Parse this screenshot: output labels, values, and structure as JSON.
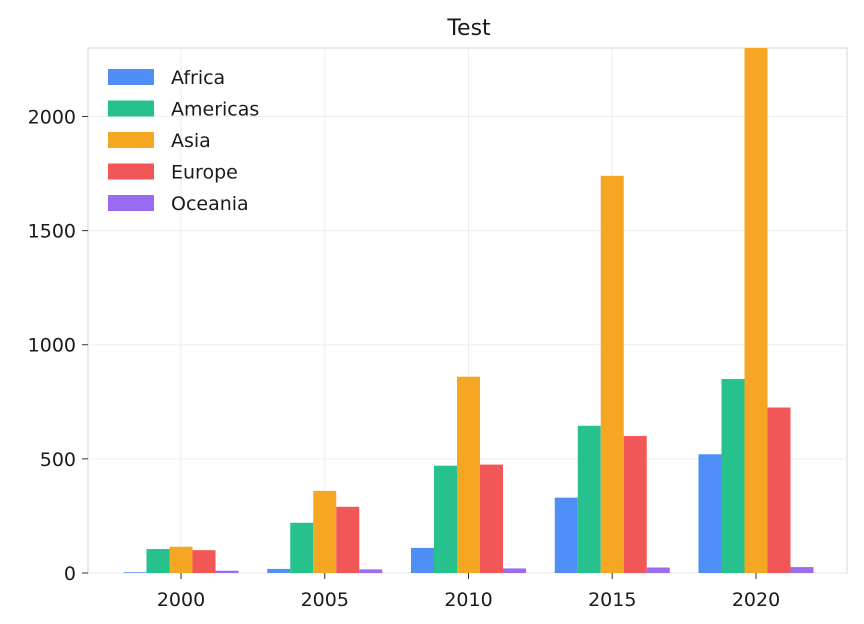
{
  "chart_data": {
    "type": "bar",
    "title": "Test",
    "xlabel": "",
    "ylabel": "",
    "categories": [
      "2000",
      "2005",
      "2010",
      "2015",
      "2020"
    ],
    "series": [
      {
        "name": "Africa",
        "color": "#4f8ef7",
        "values": [
          3,
          18,
          110,
          330,
          520
        ]
      },
      {
        "name": "Americas",
        "color": "#26c18c",
        "values": [
          105,
          220,
          470,
          645,
          850
        ]
      },
      {
        "name": "Asia",
        "color": "#f5a623",
        "values": [
          115,
          360,
          860,
          1740,
          2300
        ]
      },
      {
        "name": "Europe",
        "color": "#f25757",
        "values": [
          100,
          290,
          475,
          600,
          725
        ]
      },
      {
        "name": "Oceania",
        "color": "#9b6cf2",
        "values": [
          10,
          16,
          20,
          24,
          26
        ]
      }
    ],
    "ylim": [
      0,
      2300
    ],
    "yticks": [
      "0",
      "500",
      "1000",
      "1500",
      "2000"
    ],
    "grid": true,
    "legend_position": "top-left"
  }
}
